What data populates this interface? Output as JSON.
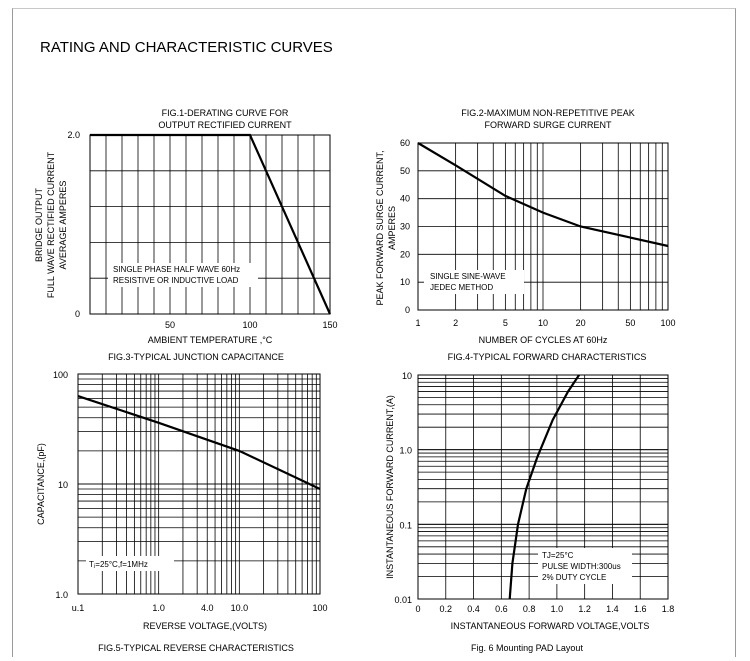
{
  "page": {
    "title": "RATING AND CHARACTERISTIC CURVES"
  },
  "chart_data": [
    {
      "id": "fig1",
      "type": "line",
      "title": [
        "FIG.1-DERATING CURVE FOR",
        "OUTPUT RECTIFIED CURRENT"
      ],
      "xlabel": "AMBIENT TEMPERATURE ,°C",
      "ylabel": [
        "BRIDGE OUTPUT",
        "FULL WAVE RECTIFIED CURRENT",
        "AVERAGE AMPERES"
      ],
      "xlim": [
        0,
        150
      ],
      "ylim": [
        0,
        2.0
      ],
      "xticks": [
        50,
        100,
        150
      ],
      "xtick_labels": [
        "50",
        "100",
        "150"
      ],
      "yticks": [
        0,
        2.0
      ],
      "ytick_labels": [
        "0",
        "2.0"
      ],
      "x": [
        0,
        100,
        150
      ],
      "y": [
        2.0,
        2.0,
        0
      ],
      "annotation": [
        "SINGLE PHASE HALF WAVE  60Hz",
        "RESISTIVE OR INDUCTIVE LOAD"
      ]
    },
    {
      "id": "fig2",
      "type": "line",
      "title": [
        "FIG.2-MAXIMUM  NON-REPETITIVE PEAK",
        "FORWARD SURGE CURRENT"
      ],
      "xlabel": "NUMBER OF CYCLES AT 60Hz",
      "ylabel": [
        "PEAK FORWARD SURGE CURRENT,",
        "AMPERES"
      ],
      "xscale": "log",
      "xlim": [
        1,
        100
      ],
      "ylim": [
        0,
        60
      ],
      "xticks": [
        1,
        2,
        5,
        10,
        20,
        50,
        100
      ],
      "xtick_labels": [
        "1",
        "2",
        "5",
        "10",
        "20",
        "50",
        "100"
      ],
      "yticks": [
        0,
        10,
        20,
        30,
        40,
        50,
        60
      ],
      "ytick_labels": [
        "0",
        "10",
        "20",
        "30",
        "40",
        "50",
        "60"
      ],
      "x": [
        1,
        2,
        5,
        10,
        20,
        50,
        100
      ],
      "y": [
        60,
        52,
        41,
        35,
        30,
        26,
        23
      ],
      "annotation": [
        "SINGLE SINE-WAVE",
        "JEDEC METHOD"
      ]
    },
    {
      "id": "fig3",
      "type": "line",
      "title": [
        "FIG.3-TYPICAL JUNCTION CAPACITANCE"
      ],
      "xlabel": "REVERSE VOLTAGE,(VOLTS)",
      "ylabel": [
        "CAPACITANCE,(pF)"
      ],
      "xscale": "log",
      "yscale": "log",
      "xlim": [
        0.1,
        100
      ],
      "ylim": [
        1,
        100
      ],
      "xticks": [
        0.1,
        1,
        4,
        10,
        100
      ],
      "xtick_labels": [
        "u.1",
        "1.0",
        "4.0",
        "10.0",
        "100"
      ],
      "yticks": [
        1,
        10,
        100
      ],
      "ytick_labels": [
        "1.0",
        "10",
        "100"
      ],
      "x": [
        0.1,
        1,
        10,
        100
      ],
      "y": [
        63,
        36,
        20,
        9
      ],
      "annotation": [
        "Tⱼ=25°C,f=1MHz"
      ]
    },
    {
      "id": "fig4",
      "type": "line",
      "title": [
        "FIG.4-TYPICAL FORWARD CHARACTERISTICS"
      ],
      "xlabel": "INSTANTANEOUS FORWARD VOLTAGE,VOLTS",
      "ylabel": [
        "INSTANTANEOUS FORWARD CURRENT,(A)"
      ],
      "yscale": "log",
      "xlim": [
        0,
        1.8
      ],
      "ylim": [
        0.01,
        10
      ],
      "xticks": [
        0,
        0.2,
        0.4,
        0.6,
        0.8,
        1.0,
        1.2,
        1.4,
        1.6,
        1.8
      ],
      "xtick_labels": [
        "0",
        "0.2",
        "0.4",
        "0.6",
        "0.8",
        "1.0",
        "1.2",
        "1.4",
        "1.6",
        "1.8"
      ],
      "yticks": [
        0.01,
        0.1,
        1.0,
        10
      ],
      "ytick_labels": [
        "0.01",
        "0.1",
        "1.0",
        "10"
      ],
      "x": [
        0.66,
        0.68,
        0.72,
        0.78,
        0.86,
        0.97,
        1.08,
        1.16
      ],
      "y": [
        0.01,
        0.03,
        0.1,
        0.3,
        0.8,
        2.5,
        6.0,
        10
      ],
      "annotation": [
        "TJ=25°C",
        "PULSE WIDTH:300us",
        "2% DUTY CYCLE"
      ]
    }
  ],
  "footer": {
    "fig5_caption": "FIG.5-TYPICAL REVERSE CHARACTERISTICS",
    "fig6_caption": "Fig. 6 Mounting  PAD  Layout"
  }
}
